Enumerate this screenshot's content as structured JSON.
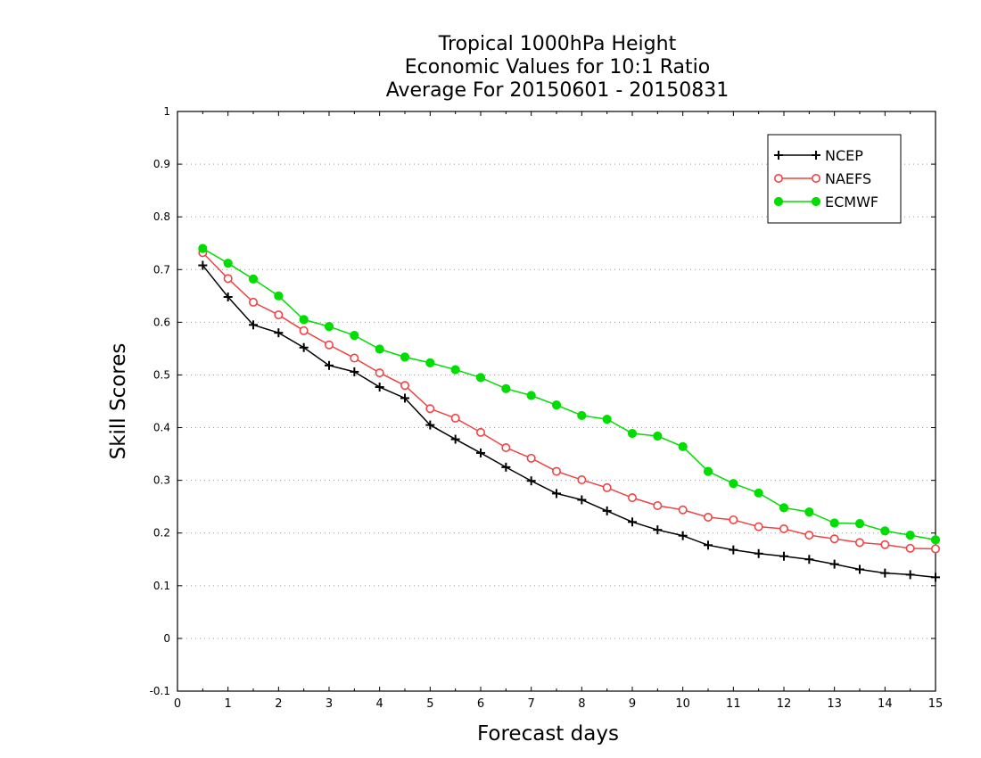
{
  "chart_data": {
    "type": "line",
    "title_lines": [
      "Tropical 1000hPa Height",
      "Economic Values for 10:1 Ratio",
      "Average For 20150601 - 20150831"
    ],
    "xlabel": "Forecast days",
    "ylabel": "Skill Scores",
    "xlim": [
      0,
      15
    ],
    "ylim": [
      -0.1,
      1
    ],
    "x_ticks": [
      0,
      1,
      2,
      3,
      4,
      5,
      6,
      7,
      8,
      9,
      10,
      11,
      12,
      13,
      14,
      15
    ],
    "x_tick_labels": [
      "0",
      "1",
      "2",
      "3",
      "4",
      "5",
      "6",
      "7",
      "8",
      "9",
      "10",
      "11",
      "12",
      "13",
      "14",
      "15"
    ],
    "y_ticks": [
      -0.1,
      0,
      0.1,
      0.2,
      0.3,
      0.4,
      0.5,
      0.6,
      0.7,
      0.8,
      0.9,
      1
    ],
    "y_tick_labels": [
      "-0.1",
      "0",
      "0.1",
      "0.2",
      "0.3",
      "0.4",
      "0.5",
      "0.6",
      "0.7",
      "0.8",
      "0.9",
      "1"
    ],
    "grid": "horizontal dotted",
    "legend_position": "top-right",
    "x": [
      0.5,
      1,
      1.5,
      2,
      2.5,
      3,
      3.5,
      4,
      4.5,
      5,
      5.5,
      6,
      6.5,
      7,
      7.5,
      8,
      8.5,
      9,
      9.5,
      10,
      10.5,
      11,
      11.5,
      12,
      12.5,
      13,
      13.5,
      14,
      14.5,
      15
    ],
    "series": [
      {
        "name": "NCEP",
        "color": "#000000",
        "marker": "plus",
        "values": [
          0.708,
          0.648,
          0.595,
          0.58,
          0.552,
          0.518,
          0.506,
          0.477,
          0.456,
          0.405,
          0.378,
          0.352,
          0.325,
          0.299,
          0.275,
          0.263,
          0.242,
          0.221,
          0.206,
          0.195,
          0.177,
          0.168,
          0.161,
          0.156,
          0.15,
          0.141,
          0.131,
          0.124,
          0.121,
          0.116
        ]
      },
      {
        "name": "NAEFS",
        "color": "#ee4444",
        "marker": "open-circle",
        "values": [
          0.732,
          0.683,
          0.638,
          0.614,
          0.584,
          0.557,
          0.532,
          0.504,
          0.48,
          0.436,
          0.418,
          0.391,
          0.362,
          0.342,
          0.317,
          0.301,
          0.286,
          0.267,
          0.252,
          0.244,
          0.23,
          0.225,
          0.212,
          0.208,
          0.196,
          0.189,
          0.182,
          0.178,
          0.171,
          0.17
        ]
      },
      {
        "name": "ECMWF",
        "color": "#00dd00",
        "marker": "filled-circle",
        "values": [
          0.74,
          0.712,
          0.682,
          0.65,
          0.605,
          0.592,
          0.575,
          0.549,
          0.534,
          0.523,
          0.51,
          0.495,
          0.474,
          0.461,
          0.443,
          0.423,
          0.416,
          0.389,
          0.384,
          0.364,
          0.317,
          0.294,
          0.276,
          0.248,
          0.24,
          0.219,
          0.218,
          0.204,
          0.196,
          0.187
        ]
      }
    ]
  }
}
